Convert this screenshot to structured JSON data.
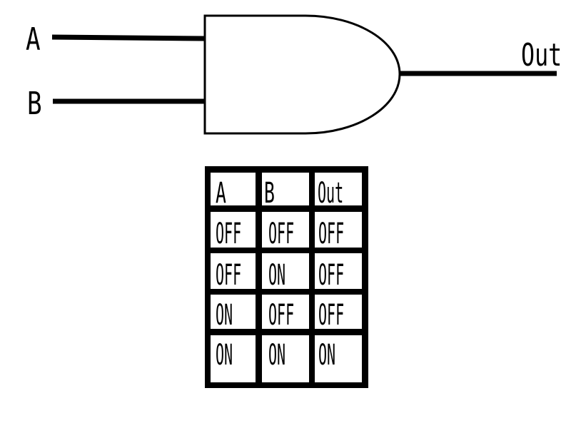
{
  "colors": {
    "ink": "#000000",
    "paper": "#ffffff"
  },
  "gate": {
    "type_icon": "and-gate-icon",
    "input_a_label": "A",
    "input_b_label": "B",
    "output_label": "Out"
  },
  "truth_table": {
    "headers": [
      "A",
      "B",
      "Out"
    ],
    "rows": [
      [
        "OFF",
        "OFF",
        "OFF"
      ],
      [
        "OFF",
        "ON",
        "OFF"
      ],
      [
        "ON",
        "OFF",
        "OFF"
      ],
      [
        "ON",
        "ON",
        "ON"
      ]
    ]
  }
}
